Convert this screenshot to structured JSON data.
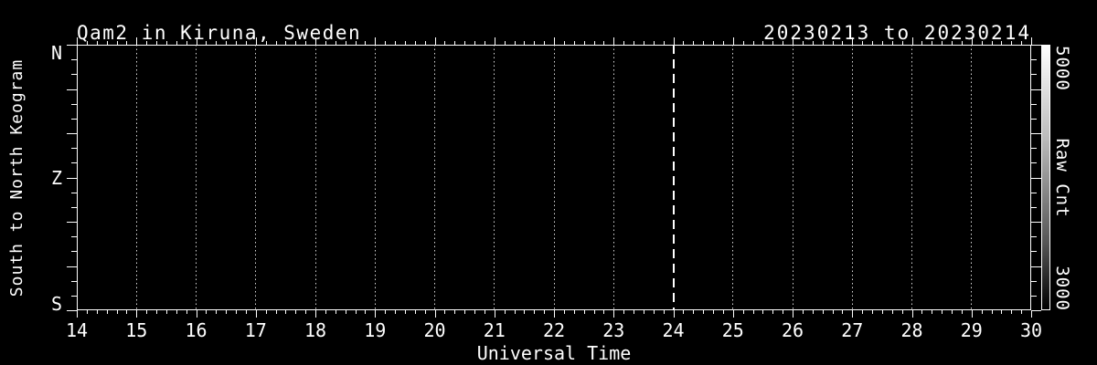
{
  "window": {
    "background": "#000000",
    "foreground": "#ffffff"
  },
  "chart_data": {
    "type": "heatmap",
    "title": "Qam2 in Kiruna, Sweden",
    "date_range": "20230213 to 20230214",
    "xlabel": "Universal Time",
    "ylabel": "South to North Keogram",
    "xlim": [
      14,
      30
    ],
    "x_major_ticks": [
      14,
      15,
      16,
      17,
      18,
      19,
      20,
      21,
      22,
      23,
      24,
      25,
      26,
      27,
      28,
      29,
      30
    ],
    "x_minor_intervals_per_hour": 6,
    "y_tick_labels": [
      {
        "label": "N",
        "frac": 0.0
      },
      {
        "label": "Z",
        "frac": 0.5
      },
      {
        "label": "S",
        "frac": 1.0
      }
    ],
    "y_major_intervals": 6,
    "y_minor_intervals_per_major": 3,
    "grid": {
      "vertical_dotted_hours": [
        15,
        16,
        17,
        18,
        19,
        20,
        21,
        22,
        23,
        25,
        26,
        27,
        28,
        29
      ],
      "dashed_vertical_hour": 24,
      "style": "dotted",
      "color": "#ffffff"
    },
    "colorbar": {
      "label": "Raw Cnt",
      "max_label": "5000",
      "min_label": "3000",
      "max_value": 5000,
      "min_value": 3000,
      "top_color": "#ffffff",
      "bottom_color": "#000000",
      "orientation": "vertical"
    },
    "values_note": "plot area is uniformly black - no counts above the color-scale minimum are visible"
  }
}
